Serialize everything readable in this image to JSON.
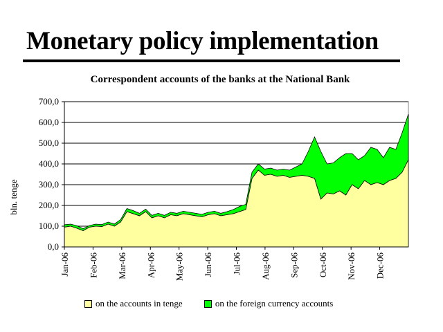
{
  "slide_title": "Monetary policy implementation",
  "chart_data": {
    "type": "area",
    "title": "Correspondent accounts of the banks at the National Bank",
    "ylabel": "bln. tenge",
    "xlabel": "",
    "ylim": [
      0,
      700
    ],
    "yticks": [
      "0,0",
      "100,0",
      "200,0",
      "300,0",
      "400,0",
      "500,0",
      "600,0",
      "700,0"
    ],
    "categories": [
      "Jan-06",
      "Feb-06",
      "Mar-06",
      "Apr-06",
      "May-06",
      "Jun-06",
      "Jul-06",
      "Aug-06",
      "Sep-06",
      "Oct-06",
      "Nov-06",
      "Dec-06"
    ],
    "grid": true,
    "stacked": true,
    "legend_position": "bottom",
    "x": [
      "Jan-06",
      "Jan-06",
      "Jan-06",
      "Jan-06",
      "Jan-06",
      "Feb-06",
      "Feb-06",
      "Feb-06",
      "Feb-06",
      "Mar-06",
      "Mar-06",
      "Mar-06",
      "Mar-06",
      "Mar-06",
      "Apr-06",
      "Apr-06",
      "Apr-06",
      "Apr-06",
      "May-06",
      "May-06",
      "May-06",
      "May-06",
      "Jun-06",
      "Jun-06",
      "Jun-06",
      "Jun-06",
      "Jun-06",
      "Jul-06",
      "Jul-06",
      "Jul-06",
      "Jul-06",
      "Jul-06",
      "Aug-06",
      "Aug-06",
      "Aug-06",
      "Aug-06",
      "Sep-06",
      "Sep-06",
      "Sep-06",
      "Sep-06",
      "Sep-06",
      "Oct-06",
      "Oct-06",
      "Oct-06",
      "Oct-06",
      "Oct-06",
      "Nov-06",
      "Nov-06",
      "Nov-06",
      "Nov-06",
      "Dec-06",
      "Dec-06",
      "Dec-06",
      "Dec-06",
      "Dec-06",
      "Dec-06"
    ],
    "series": [
      {
        "name": "on the accounts in tenge",
        "color": "#ffffa0",
        "values": [
          95,
          100,
          90,
          78,
          95,
          100,
          98,
          110,
          100,
          120,
          170,
          160,
          150,
          170,
          140,
          150,
          140,
          155,
          150,
          160,
          155,
          150,
          145,
          155,
          160,
          150,
          155,
          160,
          170,
          180,
          330,
          370,
          345,
          350,
          340,
          345,
          335,
          340,
          345,
          340,
          330,
          230,
          260,
          255,
          270,
          250,
          300,
          280,
          320,
          300,
          310,
          300,
          320,
          330,
          360,
          420
        ]
      },
      {
        "name": "on the foreign currency accounts",
        "color": "#00ff00",
        "values": [
          12,
          10,
          12,
          10,
          8,
          10,
          10,
          10,
          10,
          12,
          15,
          15,
          12,
          12,
          12,
          12,
          12,
          12,
          12,
          12,
          12,
          12,
          12,
          12,
          12,
          12,
          15,
          20,
          25,
          25,
          30,
          30,
          30,
          30,
          30,
          30,
          35,
          45,
          55,
          120,
          200,
          230,
          140,
          150,
          160,
          200,
          150,
          140,
          120,
          180,
          160,
          130,
          160,
          140,
          190,
          220
        ]
      }
    ]
  },
  "legend": {
    "items": [
      {
        "label": "on the accounts in tenge",
        "color": "#ffffa0"
      },
      {
        "label": "on the foreign currency accounts",
        "color": "#00ff00"
      }
    ]
  }
}
